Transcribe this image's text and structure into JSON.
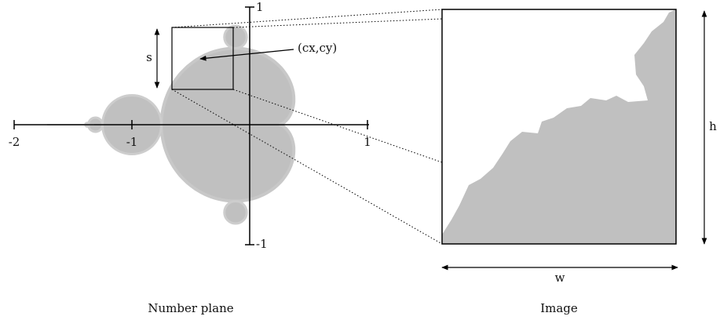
{
  "axes": {
    "x_ticks": [
      "-2",
      "-1",
      "1"
    ],
    "y_ticks": [
      "1",
      "-1"
    ]
  },
  "labels": {
    "size": "s",
    "point": "(cx,cy)",
    "height": "h",
    "width": "w"
  },
  "captions": [
    "Number plane",
    "Image"
  ]
}
